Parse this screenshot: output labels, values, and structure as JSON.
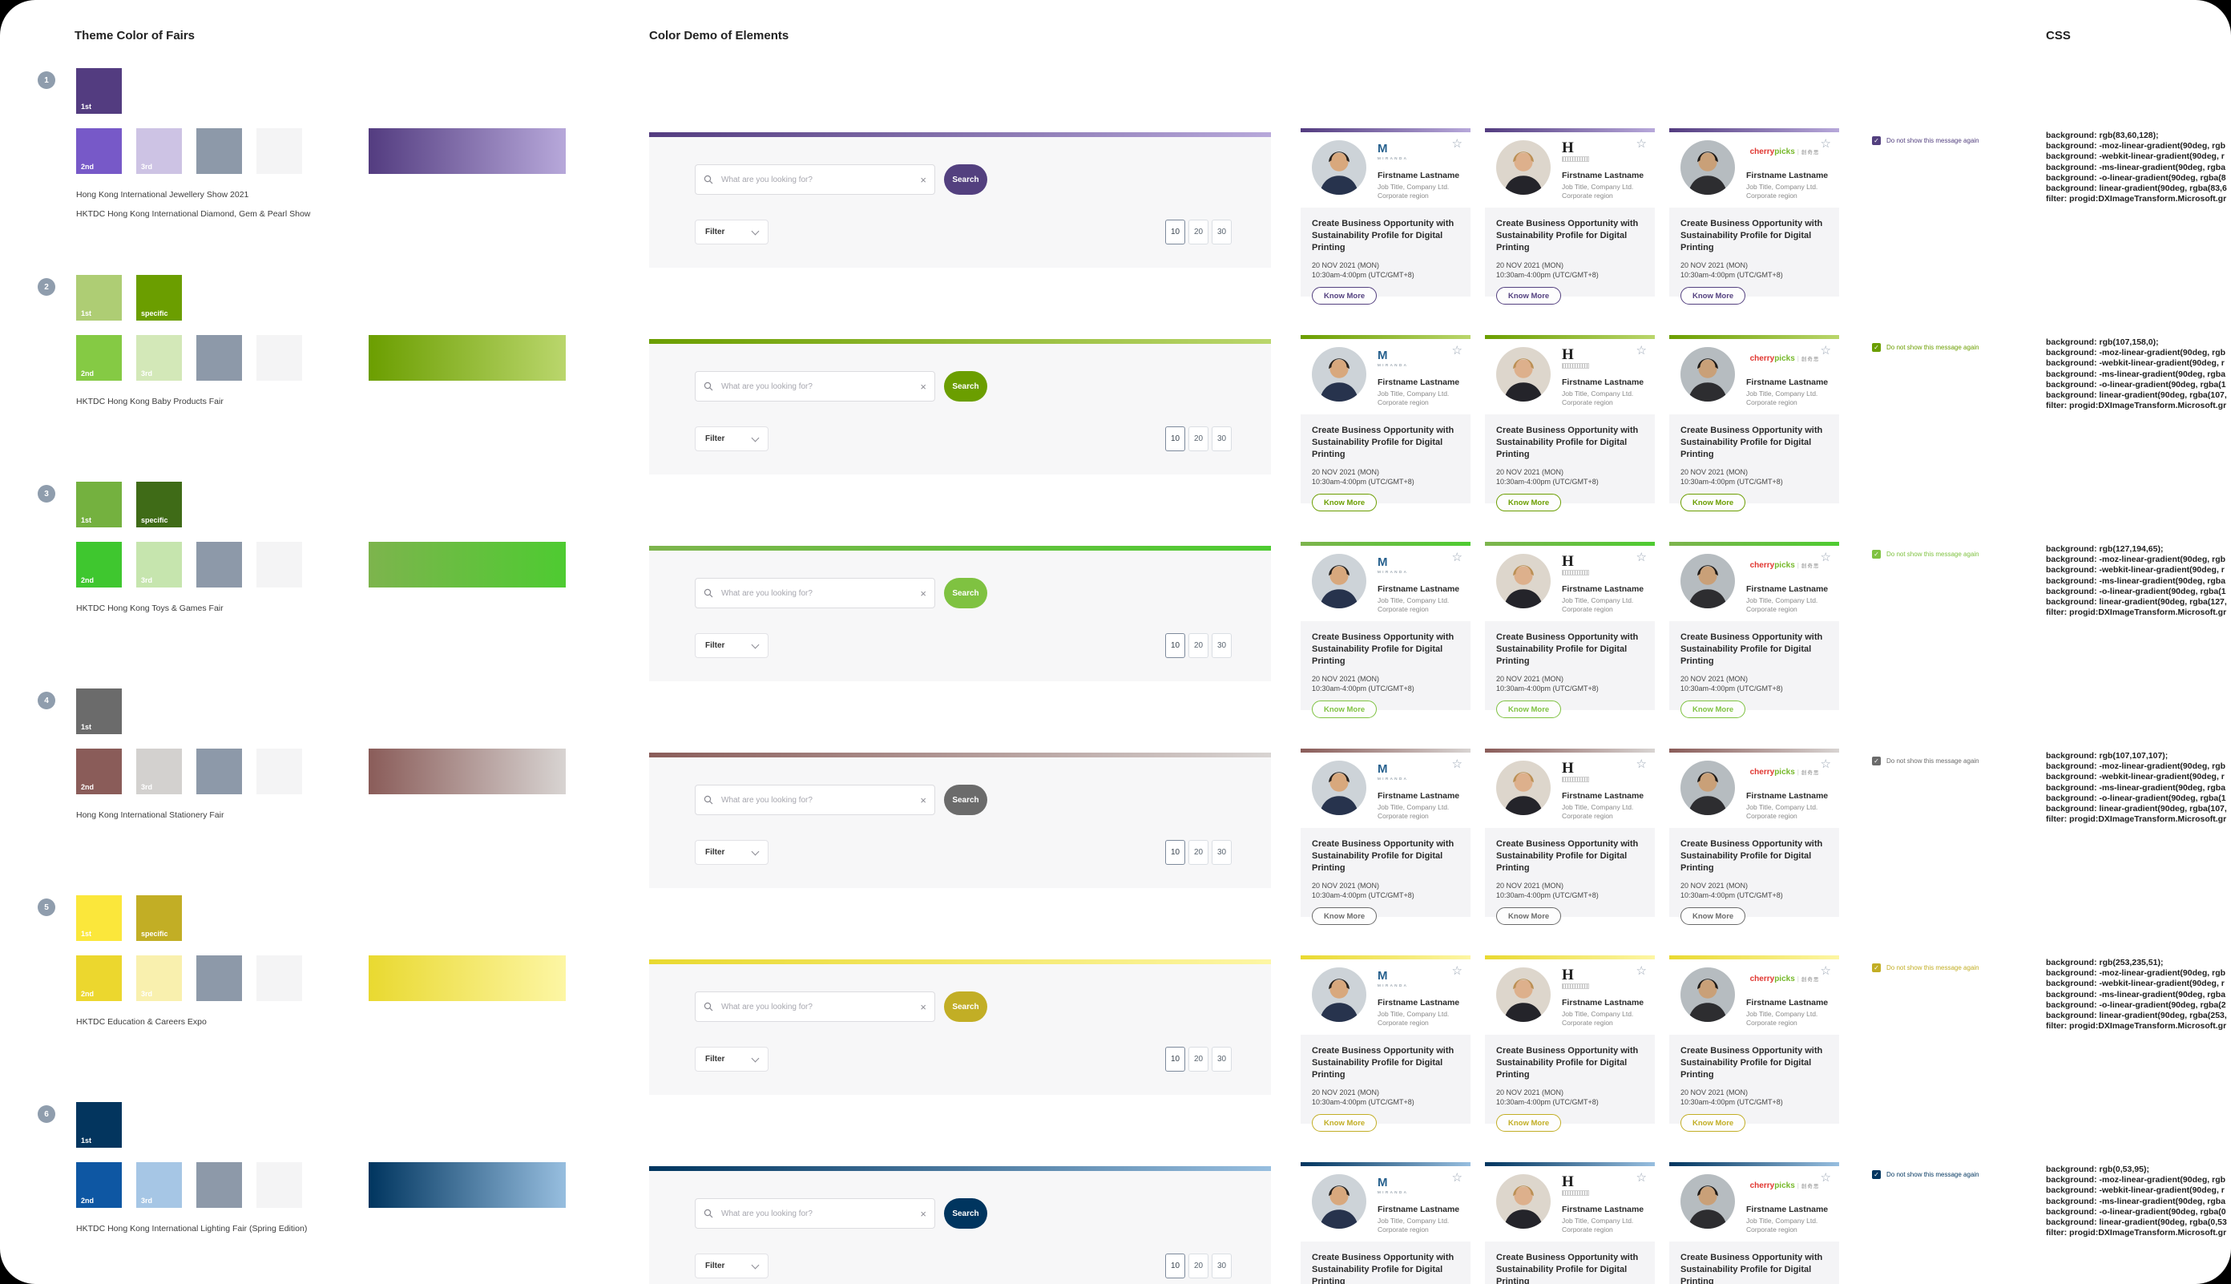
{
  "titles": {
    "left": "Theme Color of Fairs",
    "middle": "Color Demo of Elements",
    "right": "CSS"
  },
  "demo": {
    "search_placeholder": "What are you looking for?",
    "clear_icon": "×",
    "search_button": "Search",
    "filter_label": "Filter",
    "page_sizes": [
      "10",
      "20",
      "30"
    ],
    "checkbox_label": "Do not show this message again",
    "check_icon": "✓"
  },
  "card": {
    "star_icon": "☆",
    "name": "Firstname Lastname",
    "job": "Job Title, Company Ltd.",
    "region": "Corporate region",
    "title": "Create Business Opportunity with Sustainability Profile for Digital Printing",
    "date": "20 NOV 2021 (MON)",
    "time": "10:30am-4:00pm (UTC/GMT+8)",
    "know_more": "Know More",
    "logos": [
      {
        "mark": "M",
        "name": "MIRANDA"
      },
      {
        "mark": "H"
      },
      {
        "part1": "cherry",
        "part2": "picks",
        "divider": "|",
        "cjk": "創奇思"
      }
    ],
    "avatars": [
      {
        "bg": "#cdd3d8",
        "hair": "#26211d",
        "skin": "#d8a87d",
        "top": "#27334d"
      },
      {
        "bg": "#ddd6cc",
        "hair": "#bb9055",
        "skin": "#ddb08c",
        "top": "#24242a"
      },
      {
        "bg": "#b6bcc0",
        "hair": "#1e1a17",
        "skin": "#c9a078",
        "top": "#2d2d30"
      }
    ]
  },
  "rows": [
    {
      "number": "1",
      "accent": "#53407f",
      "gradient": "linear-gradient(90deg,#533c80,#b7a8da)",
      "swatches_top": [
        {
          "label": "1st",
          "color": "#533c80"
        }
      ],
      "swatches_bottom": [
        {
          "label": "2nd",
          "color": "#7759c8"
        },
        {
          "label": "3rd",
          "color": "#cdc3e4"
        },
        {
          "label": "",
          "color": "#8d99a9"
        },
        {
          "label": "",
          "color": "#f4f4f5"
        }
      ],
      "fair_names": [
        "Hong Kong International Jewellery Show 2021",
        "HKTDC Hong Kong International Diamond, Gem & Pearl Show"
      ],
      "css_lines": [
        "background: rgb(83,60,128);",
        "background: -moz-linear-gradient(90deg, rgb",
        "background: -webkit-linear-gradient(90deg, r",
        "background: -ms-linear-gradient(90deg, rgba",
        "background: -o-linear-gradient(90deg, rgba(8",
        "background: linear-gradient(90deg, rgba(83,6",
        "filter: progid:DXImageTransform.Microsoft.gr"
      ]
    },
    {
      "number": "2",
      "accent": "#6b9e00",
      "gradient": "linear-gradient(90deg,#6b9e00,#bad66c)",
      "swatches_top": [
        {
          "label": "1st",
          "color": "#aecd74"
        },
        {
          "label": "specific",
          "color": "#6b9e00"
        }
      ],
      "swatches_bottom": [
        {
          "label": "2nd",
          "color": "#85ca44"
        },
        {
          "label": "3rd",
          "color": "#d3e8b8"
        },
        {
          "label": "",
          "color": "#8d99a9"
        },
        {
          "label": "",
          "color": "#f4f4f5"
        }
      ],
      "fair_names": [
        "HKTDC Hong Kong Baby Products Fair"
      ],
      "css_lines": [
        "background: rgb(107,158,0);",
        "background: -moz-linear-gradient(90deg, rgb",
        "background: -webkit-linear-gradient(90deg, r",
        "background: -ms-linear-gradient(90deg, rgba",
        "background: -o-linear-gradient(90deg, rgba(1",
        "background: linear-gradient(90deg, rgba(107,",
        "filter: progid:DXImageTransform.Microsoft.gr"
      ]
    },
    {
      "number": "3",
      "accent": "#7fc241",
      "gradient": "linear-gradient(90deg,#7db44d,#4ecb31)",
      "swatches_top": [
        {
          "label": "1st",
          "color": "#74b13f"
        },
        {
          "label": "specific",
          "color": "#3f6b17"
        }
      ],
      "swatches_bottom": [
        {
          "label": "2nd",
          "color": "#3fc72f"
        },
        {
          "label": "3rd",
          "color": "#c6e5ae"
        },
        {
          "label": "",
          "color": "#8d99a9"
        },
        {
          "label": "",
          "color": "#f4f4f5"
        }
      ],
      "fair_names": [
        "HKTDC Hong Kong Toys & Games Fair"
      ],
      "css_lines": [
        "background: rgb(127,194,65);",
        "background: -moz-linear-gradient(90deg, rgb",
        "background: -webkit-linear-gradient(90deg, r",
        "background: -ms-linear-gradient(90deg, rgba",
        "background: -o-linear-gradient(90deg, rgba(1",
        "background: linear-gradient(90deg, rgba(127,",
        "filter: progid:DXImageTransform.Microsoft.gr"
      ]
    },
    {
      "number": "4",
      "accent": "#6b6b6b",
      "gradient": "linear-gradient(90deg,#8a5c59,#d8d4d2)",
      "swatches_top": [
        {
          "label": "1st",
          "color": "#6b6b6b"
        }
      ],
      "swatches_bottom": [
        {
          "label": "2nd",
          "color": "#8a5c59"
        },
        {
          "label": "3rd",
          "color": "#d3d1cf"
        },
        {
          "label": "",
          "color": "#8d99a9"
        },
        {
          "label": "",
          "color": "#f4f4f5"
        }
      ],
      "fair_names": [
        "Hong Kong International Stationery Fair"
      ],
      "css_lines": [
        "background: rgb(107,107,107);",
        "background: -moz-linear-gradient(90deg, rgb",
        "background: -webkit-linear-gradient(90deg, r",
        "background: -ms-linear-gradient(90deg, rgba",
        "background: -o-linear-gradient(90deg, rgba(1",
        "background: linear-gradient(90deg, rgba(107,",
        "filter: progid:DXImageTransform.Microsoft.gr"
      ]
    },
    {
      "number": "5",
      "accent": "#c2ae25",
      "gradient": "linear-gradient(90deg,#e9d930,#fdf6a4)",
      "swatches_top": [
        {
          "label": "1st",
          "color": "#fbe73b"
        },
        {
          "label": "specific",
          "color": "#c2ae25"
        }
      ],
      "swatches_bottom": [
        {
          "label": "2nd",
          "color": "#ecd72e"
        },
        {
          "label": "3rd",
          "color": "#f9f0ae"
        },
        {
          "label": "",
          "color": "#8d99a9"
        },
        {
          "label": "",
          "color": "#f4f4f5"
        }
      ],
      "fair_names": [
        "HKTDC Education & Careers Expo"
      ],
      "css_lines": [
        "background: rgb(253,235,51);",
        "background: -moz-linear-gradient(90deg, rgb",
        "background: -webkit-linear-gradient(90deg, r",
        "background: -ms-linear-gradient(90deg, rgba",
        "background: -o-linear-gradient(90deg, rgba(2",
        "background: linear-gradient(90deg, rgba(253,",
        "filter: progid:DXImageTransform.Microsoft.gr"
      ]
    },
    {
      "number": "6",
      "accent": "#00355f",
      "gradient": "linear-gradient(90deg,#00355f,#97bedf)",
      "swatches_top": [
        {
          "label": "1st",
          "color": "#03355e"
        }
      ],
      "swatches_bottom": [
        {
          "label": "2nd",
          "color": "#0e57a3"
        },
        {
          "label": "3rd",
          "color": "#a6c6e5"
        },
        {
          "label": "",
          "color": "#8d99a9"
        },
        {
          "label": "",
          "color": "#f4f4f5"
        }
      ],
      "fair_names": [
        "HKTDC Hong Kong International Lighting Fair (Spring Edition)"
      ],
      "css_lines": [
        "background: rgb(0,53,95);",
        "background: -moz-linear-gradient(90deg, rgb",
        "background: -webkit-linear-gradient(90deg, r",
        "background: -ms-linear-gradient(90deg, rgba",
        "background: -o-linear-gradient(90deg, rgba(0",
        "background: linear-gradient(90deg, rgba(0,53",
        "filter: progid:DXImageTransform.Microsoft.gr"
      ]
    }
  ]
}
